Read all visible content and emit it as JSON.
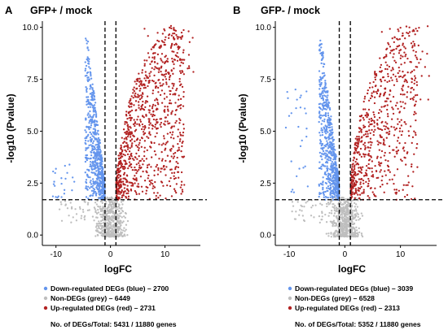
{
  "colors": {
    "down": "#6495ED",
    "non": "#BEBEBE",
    "up": "#B22222",
    "axis": "#000000"
  },
  "chart_data": [
    {
      "type": "scatter",
      "panel": "A",
      "title": "GFP+ / mock",
      "xlabel": "logFC",
      "ylabel": "-log10 (Pvalue)",
      "xlim": [
        -12.5,
        16.5
      ],
      "ylim": [
        -0.5,
        10.3
      ],
      "xticks": [
        -10,
        0,
        10
      ],
      "yticks": [
        0.0,
        2.5,
        5.0,
        7.5,
        10.0
      ],
      "ytick_labels": [
        "0.0",
        "2.5",
        "5.0",
        "7.5",
        "10.0"
      ],
      "thresholds": {
        "logfc": [
          -1,
          1
        ],
        "neg_log10_p": 1.7
      },
      "grid": false,
      "legend": [
        {
          "text": "Down-regulated DEGs (blue) – 2700",
          "color_key": "down"
        },
        {
          "text": "Non-DEGs (grey) – 6449",
          "color_key": "non"
        },
        {
          "text": "Up-regulated DEGs (red) – 2731",
          "color_key": "up"
        }
      ],
      "summary": "No. of DEGs/Total: 5431 / 11880 genes",
      "series": [
        {
          "category": "down",
          "count": 2700
        },
        {
          "category": "non",
          "count": 6449
        },
        {
          "category": "up",
          "count": 2731
        }
      ]
    },
    {
      "type": "scatter",
      "panel": "B",
      "title": "GFP- / mock",
      "xlabel": "logFC",
      "ylabel": "-log10 (Pvalue)",
      "xlim": [
        -12.5,
        16.5
      ],
      "ylim": [
        -0.5,
        10.3
      ],
      "xticks": [
        -10,
        0,
        10
      ],
      "yticks": [
        0.0,
        2.5,
        5.0,
        7.5,
        10.0
      ],
      "ytick_labels": [
        "0.0",
        "2.5",
        "5.0",
        "7.5",
        "10.0"
      ],
      "thresholds": {
        "logfc": [
          -1,
          1
        ],
        "neg_log10_p": 1.7
      },
      "grid": false,
      "legend": [
        {
          "text": "Down-regulated DEGs (blue) – 3039",
          "color_key": "down"
        },
        {
          "text": "Non-DEGs (grey) – 6528",
          "color_key": "non"
        },
        {
          "text": "Up-regulated DEGs (red) – 2313",
          "color_key": "up"
        }
      ],
      "summary": "No. of DEGs/Total: 5352 / 11880 genes",
      "series": [
        {
          "category": "down",
          "count": 3039
        },
        {
          "category": "non",
          "count": 6528
        },
        {
          "category": "up",
          "count": 2313
        }
      ]
    }
  ]
}
